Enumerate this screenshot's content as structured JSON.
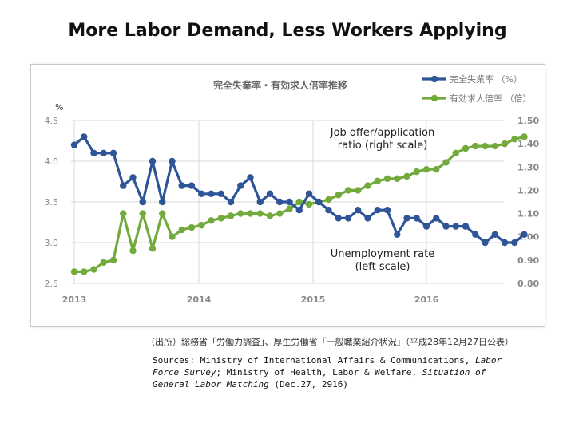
{
  "slide": {
    "title": "More Labor Demand, Less Workers Applying",
    "source_jp": "（出所）総務省「労働力調査」、厚生労働省「一般職業紹介状況」（平成28年12月27日公表）",
    "sources": {
      "prefix": "Sources: Ministry of International Affairs & Communications, ",
      "title1": "Labor Force Survey",
      "middle": "; Ministry of Health, Labor & Welfare, ",
      "title2": "Situation of General Labor Matching",
      "suffix": " (Dec.27, 2916)"
    }
  },
  "chart_data": {
    "type": "line",
    "title": "完全失業率・有効求人倍率推移",
    "left_axis_unit": "%",
    "left_axis": {
      "ylim": [
        2.5,
        4.5
      ],
      "ticks": [
        "2.5",
        "3.0",
        "3.5",
        "4.0",
        "4.5"
      ]
    },
    "right_axis": {
      "ylim": [
        0.8,
        1.5
      ],
      "ticks": [
        "0.80",
        "0.90",
        "1.00",
        "1.10",
        "1.20",
        "1.30",
        "1.40",
        "1.50"
      ]
    },
    "x_ticks": [
      "2013",
      "2014",
      "2015",
      "2016"
    ],
    "x_start": "2013-01",
    "grid": true,
    "legend_position": "top-right",
    "annotations": {
      "ratio": "Job offer/application ratio (right scale)",
      "unemployment": "Unemployment rate (left scale)"
    },
    "series": [
      {
        "name": "完全失業率 （%）",
        "axis": "left",
        "color": "#2e5597",
        "values": [
          4.2,
          4.3,
          4.1,
          4.1,
          4.1,
          3.7,
          3.8,
          3.5,
          4.0,
          3.5,
          4.0,
          3.7,
          3.7,
          3.6,
          3.6,
          3.6,
          3.5,
          3.7,
          3.8,
          3.5,
          3.6,
          3.5,
          3.5,
          3.4,
          3.6,
          3.5,
          3.4,
          3.3,
          3.3,
          3.4,
          3.3,
          3.4,
          3.4,
          3.1,
          3.3,
          3.3,
          3.2,
          3.3,
          3.2,
          3.2,
          3.2,
          3.1,
          3.0,
          3.1,
          3.0,
          3.0,
          3.1
        ]
      },
      {
        "name": "有効求人倍率 （倍）",
        "axis": "right",
        "color": "#72ab3c",
        "values": [
          0.85,
          0.85,
          0.86,
          0.89,
          0.9,
          1.1,
          0.94,
          1.1,
          0.95,
          1.1,
          1.0,
          1.03,
          1.04,
          1.05,
          1.07,
          1.08,
          1.09,
          1.1,
          1.1,
          1.1,
          1.09,
          1.1,
          1.12,
          1.15,
          1.14,
          1.15,
          1.16,
          1.18,
          1.2,
          1.2,
          1.22,
          1.24,
          1.25,
          1.25,
          1.26,
          1.28,
          1.29,
          1.29,
          1.32,
          1.36,
          1.38,
          1.39,
          1.39,
          1.39,
          1.4,
          1.42,
          1.43
        ]
      }
    ]
  }
}
